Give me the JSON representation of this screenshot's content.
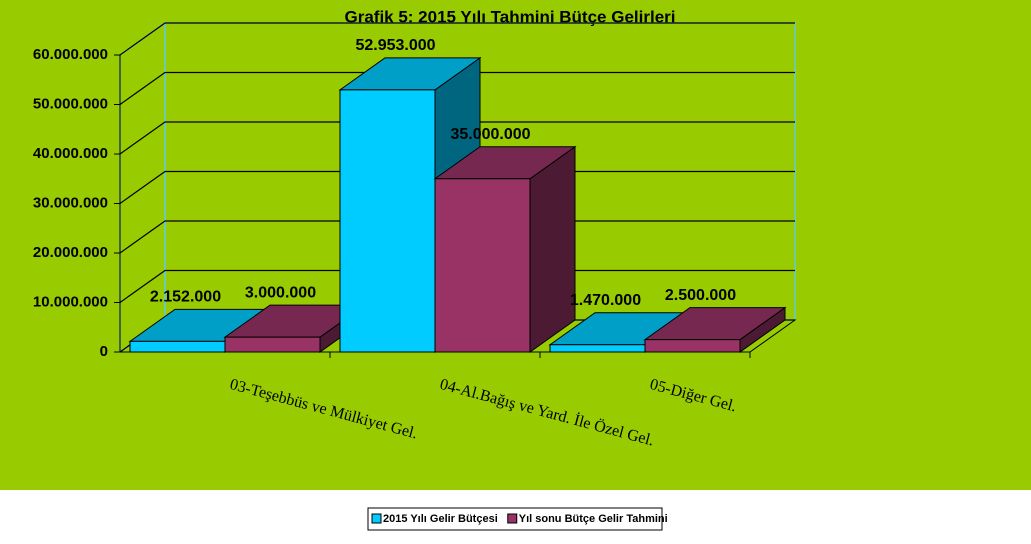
{
  "chart_data": {
    "type": "bar3d",
    "title": "Grafik 5: 2015 Yılı Tahmini Bütçe Gelirleri",
    "categories": [
      "03-Teşebbüs ve Mülkiyet Gel.",
      "04-Al.Bağış ve Yard. İle Özel Gel.",
      "05-Diğer Gel."
    ],
    "series": [
      {
        "name": "2015 Yılı Gelir Bütçesi",
        "color": "#00ccff",
        "values": [
          2152000,
          52953000,
          1470000
        ],
        "value_labels": [
          "2.152.000",
          "52.953.000",
          "1.470.000"
        ]
      },
      {
        "name": "Yıl sonu Bütçe Gelir Tahmini",
        "color": "#993366",
        "values": [
          3000000,
          35000000,
          2500000
        ],
        "value_labels": [
          "3.000.000",
          "35.000.000",
          "2.500.000"
        ]
      }
    ],
    "ylim": [
      0,
      60000000
    ],
    "yticks": [
      0,
      {
        "value": 10000000,
        "label": "10.000.000"
      },
      {
        "value": 20000000,
        "label": "20.000.000"
      },
      {
        "value": 30000000,
        "label": "30.000.000"
      },
      {
        "value": 40000000,
        "label": "40.000.000"
      },
      {
        "value": 50000000,
        "label": "50.000.000"
      },
      {
        "value": 60000000,
        "label": "60.000.000"
      }
    ],
    "grid": true,
    "legend": "bottom",
    "background": "#99cc00"
  }
}
